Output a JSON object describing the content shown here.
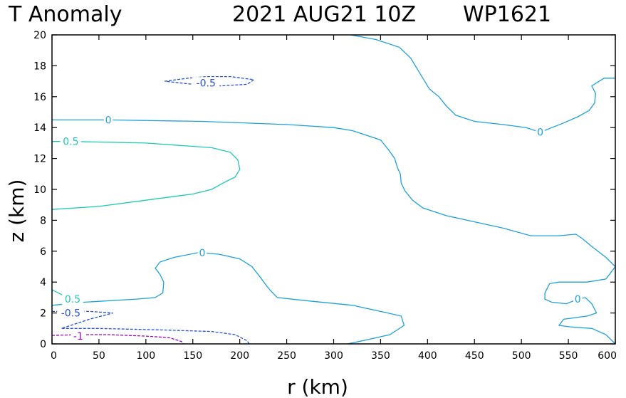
{
  "chart_data": {
    "type": "line",
    "title": "T Anomaly",
    "title_date": "2021 AUG21 10Z",
    "title_storm": "WP1621",
    "xlabel": "r (km)",
    "ylabel": "z (km)",
    "xlim": [
      0,
      600
    ],
    "ylim": [
      0,
      20
    ],
    "xticks": [
      0,
      50,
      100,
      150,
      200,
      250,
      300,
      350,
      400,
      450,
      500,
      550,
      600
    ],
    "yticks": [
      0,
      2,
      4,
      6,
      8,
      10,
      12,
      14,
      16,
      18,
      20
    ],
    "grid": false,
    "colors": {
      "zero": "#1ea0dc",
      "pos05": "#1ec8b4",
      "neg05": "#2850dc",
      "neg1": "#a000c8"
    },
    "contours": [
      {
        "label": "0",
        "color": "zero",
        "dashed": false,
        "points": [
          [
            318,
            20
          ],
          [
            345,
            19.7
          ],
          [
            370,
            19.2
          ],
          [
            382,
            18.5
          ],
          [
            392,
            17.5
          ],
          [
            402,
            16.5
          ],
          [
            412,
            16
          ],
          [
            420,
            15.4
          ],
          [
            430,
            14.8
          ],
          [
            450,
            14.4
          ],
          [
            480,
            14.2
          ],
          [
            505,
            14
          ],
          [
            520,
            13.7
          ],
          [
            545,
            14.3
          ],
          [
            560,
            14.7
          ],
          [
            572,
            15.1
          ],
          [
            578,
            15.6
          ],
          [
            579,
            16.2
          ],
          [
            575,
            16.7
          ],
          [
            588,
            17.2
          ],
          [
            600,
            17.2
          ]
        ],
        "label_at": [
          520,
          13.7
        ]
      },
      {
        "label": "0",
        "color": "zero",
        "dashed": false,
        "points": [
          [
            0,
            14.5
          ],
          [
            60,
            14.5
          ],
          [
            160,
            14.4
          ],
          [
            250,
            14.2
          ],
          [
            300,
            14
          ],
          [
            320,
            13.8
          ],
          [
            335,
            13.5
          ],
          [
            350,
            13.2
          ],
          [
            358,
            12.6
          ],
          [
            365,
            12
          ],
          [
            368,
            11.4
          ],
          [
            371,
            11
          ],
          [
            372,
            10.4
          ],
          [
            376,
            9.9
          ],
          [
            384,
            9.3
          ],
          [
            395,
            8.8
          ],
          [
            420,
            8.3
          ],
          [
            450,
            7.9
          ],
          [
            480,
            7.5
          ],
          [
            510,
            7
          ],
          [
            540,
            7
          ],
          [
            558,
            7.1
          ],
          [
            565,
            6.8
          ],
          [
            575,
            6.3
          ],
          [
            590,
            5.6
          ],
          [
            600,
            5
          ]
        ],
        "label_at": [
          60,
          14.5
        ]
      },
      {
        "label": "0",
        "color": "zero",
        "dashed": false,
        "points": [
          [
            0,
            2.5
          ],
          [
            35,
            2.7
          ],
          [
            90,
            2.9
          ],
          [
            110,
            3
          ],
          [
            118,
            3.3
          ],
          [
            119,
            4
          ],
          [
            115,
            4.5
          ],
          [
            110,
            4.9
          ],
          [
            115,
            5.3
          ],
          [
            130,
            5.6
          ],
          [
            155,
            5.9
          ],
          [
            160,
            5.9
          ],
          [
            178,
            5.8
          ],
          [
            200,
            5.5
          ],
          [
            213,
            5
          ],
          [
            222,
            4.3
          ],
          [
            228,
            3.8
          ],
          [
            232,
            3.5
          ],
          [
            240,
            3
          ],
          [
            270,
            2.8
          ],
          [
            320,
            2.5
          ],
          [
            350,
            2.1
          ],
          [
            372,
            1.8
          ],
          [
            375,
            1.2
          ],
          [
            360,
            0.6
          ],
          [
            338,
            0.3
          ],
          [
            315,
            0
          ]
        ],
        "label_at": [
          160,
          5.9
        ]
      },
      {
        "label": "0",
        "color": "zero",
        "dashed": false,
        "points": [
          [
            600,
            5
          ],
          [
            590,
            4.2
          ],
          [
            570,
            4
          ],
          [
            540,
            4
          ],
          [
            530,
            3.9
          ],
          [
            525,
            3.3
          ],
          [
            525,
            2.9
          ],
          [
            532,
            2.7
          ],
          [
            548,
            2.6
          ],
          [
            560,
            2.9
          ],
          [
            568,
            3
          ],
          [
            575,
            2.6
          ],
          [
            580,
            2
          ],
          [
            570,
            1.8
          ],
          [
            545,
            1.6
          ],
          [
            540,
            1.2
          ],
          [
            552,
            1.1
          ],
          [
            575,
            1
          ],
          [
            590,
            0.6
          ],
          [
            600,
            0
          ]
        ],
        "label_at": [
          560,
          2.9
        ]
      },
      {
        "label": "0.5",
        "color": "pos05",
        "dashed": false,
        "points": [
          [
            0,
            13.1
          ],
          [
            20,
            13.1
          ],
          [
            100,
            13
          ],
          [
            170,
            12.7
          ],
          [
            190,
            12.4
          ],
          [
            198,
            11.9
          ],
          [
            200,
            11.3
          ],
          [
            195,
            10.8
          ],
          [
            182,
            10.4
          ],
          [
            170,
            10
          ],
          [
            150,
            9.7
          ],
          [
            100,
            9.3
          ],
          [
            50,
            8.9
          ],
          [
            0,
            8.7
          ]
        ],
        "label_at": [
          20,
          13.1
        ]
      },
      {
        "label": "0.5",
        "color": "pos05",
        "dashed": false,
        "points": [
          [
            0,
            3.5
          ],
          [
            10,
            3.2
          ],
          [
            18,
            2.9
          ]
        ],
        "label_at": [
          22,
          2.9
        ]
      },
      {
        "label": "-0.5",
        "color": "neg05",
        "dashed": true,
        "points": [
          [
            120,
            17
          ],
          [
            145,
            17.2
          ],
          [
            165,
            17.3
          ],
          [
            190,
            17.3
          ],
          [
            215,
            17.1
          ],
          [
            208,
            16.8
          ],
          [
            180,
            16.7
          ],
          [
            150,
            16.8
          ],
          [
            120,
            17
          ]
        ],
        "label_at": [
          164,
          16.9
        ]
      },
      {
        "label": "-0.5",
        "color": "neg05",
        "dashed": true,
        "points": [
          [
            0,
            2.1
          ],
          [
            20,
            2.1
          ],
          [
            40,
            2.1
          ],
          [
            65,
            2
          ],
          [
            40,
            1.6
          ],
          [
            10,
            1
          ],
          [
            50,
            1
          ],
          [
            120,
            0.9
          ],
          [
            170,
            0.8
          ],
          [
            195,
            0.6
          ],
          [
            208,
            0.2
          ],
          [
            210,
            0
          ]
        ],
        "label_at": [
          20,
          2
        ]
      },
      {
        "label": "-1",
        "color": "neg1",
        "dashed": true,
        "points": [
          [
            0,
            0.55
          ],
          [
            30,
            0.6
          ],
          [
            60,
            0.6
          ],
          [
            100,
            0.5
          ],
          [
            125,
            0.4
          ],
          [
            138,
            0.15
          ],
          [
            140,
            0
          ]
        ],
        "label_at": [
          28,
          0.5
        ]
      }
    ]
  }
}
